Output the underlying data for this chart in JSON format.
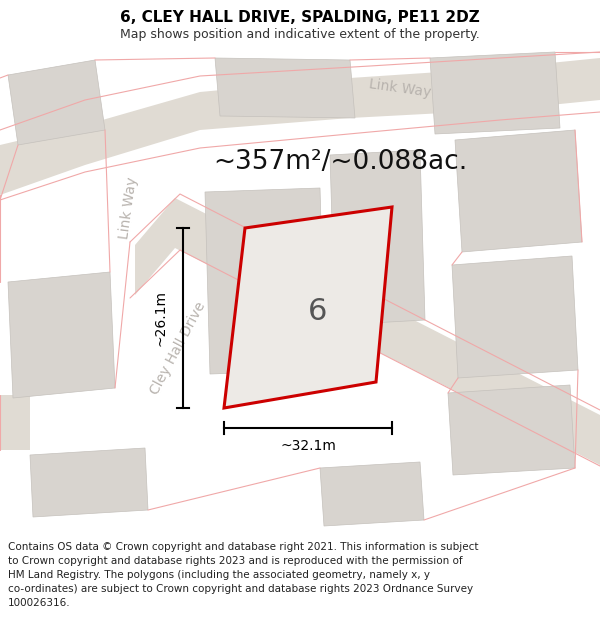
{
  "title": "6, CLEY HALL DRIVE, SPALDING, PE11 2DZ",
  "subtitle": "Map shows position and indicative extent of the property.",
  "area_text": "~357m²/~0.088ac.",
  "plot_number": "6",
  "dim_width": "~32.1m",
  "dim_height": "~26.1m",
  "footer_line1": "Contains OS data © Crown copyright and database right 2021. This information is subject",
  "footer_line2": "to Crown copyright and database rights 2023 and is reproduced with the permission of",
  "footer_line3": "HM Land Registry. The polygons (including the associated geometry, namely x, y",
  "footer_line4": "co-ordinates) are subject to Crown copyright and database rights 2023 Ordnance Survey",
  "footer_line5": "100026316.",
  "map_bg": "#f2f0ed",
  "road_fill": "#e0dbd3",
  "building_fill": "#d8d4cf",
  "building_edge": "#c5c1bc",
  "plot_fill": "#edeae6",
  "plot_edge": "#cc0000",
  "road_label_color": "#b8b3ae",
  "pink_line": "#f0a8a8",
  "dim_color": "#000000",
  "title_fontsize": 11,
  "subtitle_fontsize": 9,
  "area_fontsize": 19,
  "plot_num_fontsize": 22,
  "dim_fontsize": 10,
  "road_label_fontsize": 10,
  "footer_fontsize": 7.5
}
